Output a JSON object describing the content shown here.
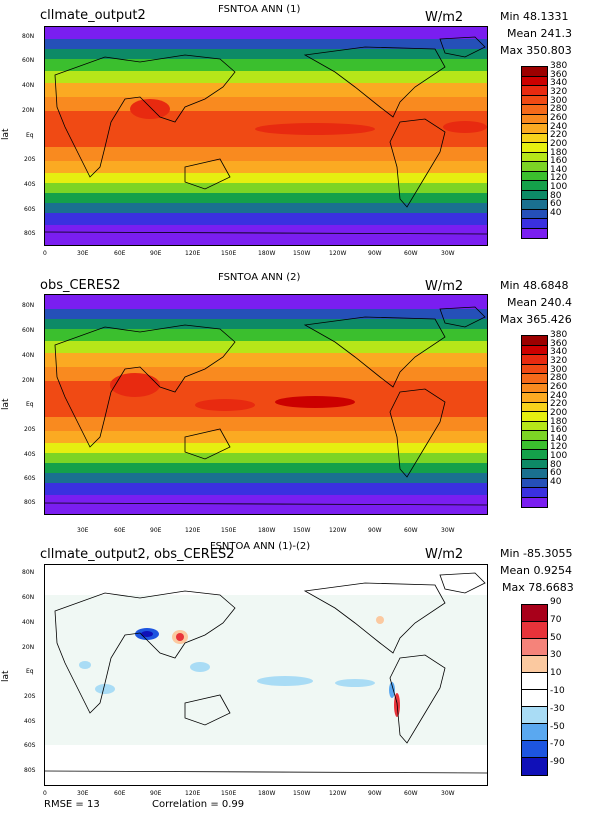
{
  "panels": [
    {
      "case": "cllmate_output2",
      "title": "FSNTOA ANN (1)",
      "units": "W/m2",
      "min": "Min 48.1331",
      "mean": "Mean 241.3",
      "max": "Max 350.803",
      "ylabel": "lat",
      "levels": [
        "380",
        "360",
        "340",
        "320",
        "300",
        "280",
        "260",
        "240",
        "220",
        "200",
        "180",
        "160",
        "140",
        "120",
        "100",
        "80",
        "60",
        "40"
      ],
      "colors": [
        "#9c0000",
        "#cc0000",
        "#e82a10",
        "#f04a14",
        "#f56a1a",
        "#f98a1f",
        "#fbaa22",
        "#f7d21c",
        "#e6ef10",
        "#b6e619",
        "#7cd425",
        "#3bbf2e",
        "#14a04a",
        "#0d8a66",
        "#1a7090",
        "#2550b8",
        "#3a30e0",
        "#7a1ef0"
      ]
    },
    {
      "case": "obs_CERES2",
      "title": "FSNTOA ANN (2)",
      "units": "W/m2",
      "min": "Min 48.6848",
      "mean": "Mean 240.4",
      "max": "Max 365.426",
      "ylabel": "lat",
      "levels": [
        "380",
        "360",
        "340",
        "320",
        "300",
        "280",
        "260",
        "240",
        "220",
        "200",
        "180",
        "160",
        "140",
        "120",
        "100",
        "80",
        "60",
        "40"
      ],
      "colors": [
        "#9c0000",
        "#cc0000",
        "#e82a10",
        "#f04a14",
        "#f56a1a",
        "#f98a1f",
        "#fbaa22",
        "#f7d21c",
        "#e6ef10",
        "#b6e619",
        "#7cd425",
        "#3bbf2e",
        "#14a04a",
        "#0d8a66",
        "#1a7090",
        "#2550b8",
        "#3a30e0",
        "#7a1ef0"
      ]
    },
    {
      "case": "cllmate_output2, obs_CERES2",
      "title": "FSNTOA ANN (1)-(2)",
      "units": "W/m2",
      "min": "Min -85.3055",
      "mean": "Mean 0.9254",
      "max": "Max 78.6683",
      "ylabel": "lat",
      "levels": [
        "90",
        "70",
        "50",
        "30",
        "10",
        "-10",
        "-30",
        "-50",
        "-70",
        "-90"
      ],
      "colors": [
        "#a8001a",
        "#e8333a",
        "#f5837a",
        "#fbc9a0",
        "#ffffff",
        "#ffffff",
        "#a9dcf5",
        "#5aa8f0",
        "#1d55e0",
        "#1010b8"
      ]
    }
  ],
  "yticks": [
    "80N",
    "60N",
    "40N",
    "20N",
    "Eq",
    "20S",
    "40S",
    "60S",
    "80S"
  ],
  "xticks": [
    "0",
    "30E",
    "60E",
    "90E",
    "120E",
    "150E",
    "180W",
    "150W",
    "120W",
    "90W",
    "60W",
    "30W"
  ],
  "footer": {
    "rmse": "RMSE = 13",
    "correlation": "Correlation = 0.99"
  }
}
